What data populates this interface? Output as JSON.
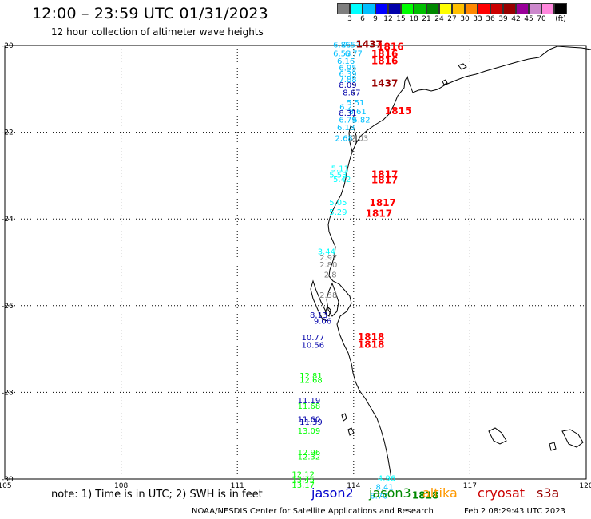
{
  "header": {
    "title": "12:00 – 23:59 UTC 01/31/2023",
    "subtitle": "12 hour collection of altimeter wave heights"
  },
  "legend": {
    "colors": [
      "#7f7f7f",
      "#00ffff",
      "#00c0ff",
      "#0000ff",
      "#0000aa",
      "#00ff00",
      "#00c000",
      "#008800",
      "#ffff00",
      "#ffc000",
      "#ff8800",
      "#ff0000",
      "#cc0000",
      "#990000",
      "#990099",
      "#cc88cc",
      "#ff88dd",
      "#000000"
    ],
    "labels": [
      "3",
      "6",
      "9",
      "12",
      "15",
      "18",
      "21",
      "24",
      "27",
      "30",
      "33",
      "36",
      "39",
      "42",
      "45",
      "70",
      "(ft)"
    ]
  },
  "axes": {
    "lat_labels": [
      "-20",
      "-22",
      "-24",
      "-26",
      "-28",
      "-30"
    ],
    "lon_labels": [
      "105",
      "108",
      "111",
      "114",
      "117",
      "120"
    ]
  },
  "observations": [
    {
      "text": "6.86",
      "lon": 113.7,
      "lat": -20.05,
      "color": "#00c0ff"
    },
    {
      "text": "7.57",
      "lon": 113.95,
      "lat": -20.05,
      "color": "#00c0ff"
    },
    {
      "text": "6.58",
      "lon": 113.7,
      "lat": -20.25,
      "color": "#00c0ff"
    },
    {
      "text": "6.77",
      "lon": 114.0,
      "lat": -20.25,
      "color": "#00c0ff"
    },
    {
      "text": "6.16",
      "lon": 113.8,
      "lat": -20.42,
      "color": "#00c0ff"
    },
    {
      "text": "6.95",
      "lon": 113.85,
      "lat": -20.58,
      "color": "#00c0ff"
    },
    {
      "text": "6.39",
      "lon": 113.85,
      "lat": -20.72,
      "color": "#00c0ff"
    },
    {
      "text": "7.88",
      "lon": 113.85,
      "lat": -20.85,
      "color": "#00c0ff"
    },
    {
      "text": "8.09",
      "lon": 113.85,
      "lat": -20.98,
      "color": "#0000aa"
    },
    {
      "text": "8.67",
      "lon": 113.95,
      "lat": -21.15,
      "color": "#0000aa"
    },
    {
      "text": "5.51",
      "lon": 114.05,
      "lat": -21.38,
      "color": "#00c0ff"
    },
    {
      "text": "6.2",
      "lon": 113.8,
      "lat": -21.48,
      "color": "#00c0ff"
    },
    {
      "text": "8.61",
      "lon": 114.1,
      "lat": -21.58,
      "color": "#00c0ff"
    },
    {
      "text": "8.31",
      "lon": 113.85,
      "lat": -21.62,
      "color": "#0000aa"
    },
    {
      "text": "6.79",
      "lon": 113.85,
      "lat": -21.78,
      "color": "#00c0ff"
    },
    {
      "text": "5.82",
      "lon": 114.2,
      "lat": -21.78,
      "color": "#00c0ff"
    },
    {
      "text": "6.18",
      "lon": 113.8,
      "lat": -21.95,
      "color": "#00c0ff"
    },
    {
      "text": "2.68",
      "lon": 113.75,
      "lat": -22.2,
      "color": "#00c0ff"
    },
    {
      "text": "2.03",
      "lon": 114.15,
      "lat": -22.2,
      "color": "#7f7f7f"
    },
    {
      "text": "5.11",
      "lon": 113.65,
      "lat": -22.9,
      "color": "#00ffff"
    },
    {
      "text": "5.53",
      "lon": 113.6,
      "lat": -23.05,
      "color": "#00ffff"
    },
    {
      "text": "5.42",
      "lon": 113.7,
      "lat": -23.15,
      "color": "#00ffff"
    },
    {
      "text": "5.05",
      "lon": 113.6,
      "lat": -23.68,
      "color": "#00ffff"
    },
    {
      "text": "5.29",
      "lon": 113.6,
      "lat": -23.9,
      "color": "#00ffff"
    },
    {
      "text": "3.44",
      "lon": 113.3,
      "lat": -24.82,
      "color": "#00ffff"
    },
    {
      "text": "2.97",
      "lon": 113.35,
      "lat": -24.95,
      "color": "#7f7f7f"
    },
    {
      "text": "2.80",
      "lon": 113.35,
      "lat": -25.12,
      "color": "#7f7f7f"
    },
    {
      "text": "2.8",
      "lon": 113.4,
      "lat": -25.35,
      "color": "#7f7f7f"
    },
    {
      "text": "2.38",
      "lon": 113.35,
      "lat": -25.82,
      "color": "#7f7f7f"
    },
    {
      "text": "8.13",
      "lon": 113.1,
      "lat": -26.28,
      "color": "#0000aa"
    },
    {
      "text": "9.06",
      "lon": 113.2,
      "lat": -26.42,
      "color": "#0000aa"
    },
    {
      "text": "10.77",
      "lon": 112.95,
      "lat": -26.8,
      "color": "#0000aa"
    },
    {
      "text": "10.56",
      "lon": 112.95,
      "lat": -26.97,
      "color": "#0000aa"
    },
    {
      "text": "12.81",
      "lon": 112.9,
      "lat": -27.68,
      "color": "#00ff00"
    },
    {
      "text": "12.68",
      "lon": 112.9,
      "lat": -27.78,
      "color": "#00ff00"
    },
    {
      "text": "11.19",
      "lon": 112.85,
      "lat": -28.25,
      "color": "#0000aa"
    },
    {
      "text": "11.68",
      "lon": 112.85,
      "lat": -28.38,
      "color": "#00ff00"
    },
    {
      "text": "11.60",
      "lon": 112.85,
      "lat": -28.68,
      "color": "#0000aa"
    },
    {
      "text": "11.39",
      "lon": 112.9,
      "lat": -28.75,
      "color": "#0000aa"
    },
    {
      "text": "13.09",
      "lon": 112.85,
      "lat": -28.95,
      "color": "#00ff00"
    },
    {
      "text": "12.96",
      "lon": 112.85,
      "lat": -29.45,
      "color": "#00ff00"
    },
    {
      "text": "12.32",
      "lon": 112.85,
      "lat": -29.55,
      "color": "#00ff00"
    },
    {
      "text": "12.12",
      "lon": 112.7,
      "lat": -29.95,
      "color": "#00ff00"
    },
    {
      "text": "13.45",
      "lon": 112.7,
      "lat": -30.08,
      "color": "#00ff00"
    },
    {
      "text": "13.17",
      "lon": 112.7,
      "lat": -30.2,
      "color": "#00ff00"
    },
    {
      "text": "4.96",
      "lon": 114.85,
      "lat": -30.05,
      "color": "#00ffff"
    },
    {
      "text": "8.41",
      "lon": 114.8,
      "lat": -30.25,
      "color": "#00c0ff"
    },
    {
      "text": "8.70",
      "lon": 114.65,
      "lat": -30.45,
      "color": "#00c0ff"
    }
  ],
  "time_tags": [
    {
      "text": "1437",
      "lon": 114.4,
      "lat": -20.05,
      "color": "#990000"
    },
    {
      "text": "1816",
      "lon": 114.95,
      "lat": -20.1,
      "color": "#ff0000"
    },
    {
      "text": "1816",
      "lon": 114.8,
      "lat": -20.27,
      "color": "#ff0000"
    },
    {
      "text": "1816",
      "lon": 114.8,
      "lat": -20.43,
      "color": "#ff0000"
    },
    {
      "text": "1437",
      "lon": 114.8,
      "lat": -20.95,
      "color": "#990000"
    },
    {
      "text": "1815",
      "lon": 115.15,
      "lat": -21.58,
      "color": "#ff0000"
    },
    {
      "text": "1817",
      "lon": 114.8,
      "lat": -23.05,
      "color": "#ff0000"
    },
    {
      "text": "1817",
      "lon": 114.8,
      "lat": -23.18,
      "color": "#ff0000"
    },
    {
      "text": "1817",
      "lon": 114.75,
      "lat": -23.7,
      "color": "#ff0000"
    },
    {
      "text": "1817",
      "lon": 114.65,
      "lat": -23.95,
      "color": "#ff0000"
    },
    {
      "text": "1818",
      "lon": 114.45,
      "lat": -26.8,
      "color": "#ff0000"
    },
    {
      "text": "1818",
      "lon": 114.45,
      "lat": -26.97,
      "color": "#ff0000"
    },
    {
      "text": "1818",
      "lon": 115.85,
      "lat": -30.45,
      "color": "#008800"
    }
  ],
  "footer": {
    "note": "note:  1) Time is in UTC;  2) SWH is in feet",
    "satellites": [
      {
        "name": "jason2",
        "color": "#0000cc"
      },
      {
        "name": "jason3",
        "color": "#008800"
      },
      {
        "name": "altika",
        "color": "#ff9900"
      },
      {
        "name": "cryosat",
        "color": "#cc0000"
      },
      {
        "name": "s3a",
        "color": "#990000"
      }
    ],
    "credit": "NOAA/NESDIS Center for Satellite Applications and Research",
    "timestamp": "Feb  2 08:29:43 UTC 2023"
  }
}
